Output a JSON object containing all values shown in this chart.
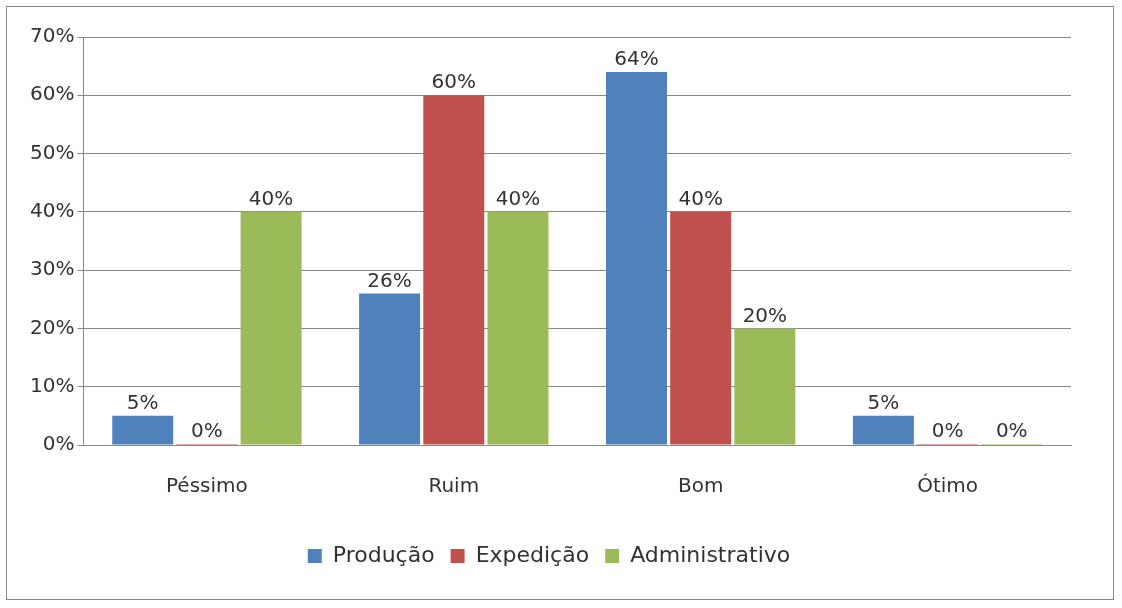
{
  "chart_data": {
    "type": "bar",
    "categories": [
      "Péssimo",
      "Ruim",
      "Bom",
      "Ótimo"
    ],
    "series": [
      {
        "name": "Produção",
        "color": "#4f81bd",
        "values": [
          5,
          26,
          64,
          5
        ],
        "value_labels": [
          "5%",
          "26%",
          "64%",
          "5%"
        ]
      },
      {
        "name": "Expedição",
        "color": "#c0504d",
        "values": [
          0,
          60,
          40,
          0
        ],
        "value_labels": [
          "0%",
          "60%",
          "40%",
          "0%"
        ]
      },
      {
        "name": "Administrativo",
        "color": "#9bbb59",
        "values": [
          40,
          40,
          20,
          0
        ],
        "value_labels": [
          "40%",
          "40%",
          "20%",
          "0%"
        ]
      }
    ],
    "ylim": [
      0,
      70
    ],
    "yticks": [
      {
        "value": 0,
        "label": "0%"
      },
      {
        "value": 10,
        "label": "10%"
      },
      {
        "value": 20,
        "label": "20%"
      },
      {
        "value": 30,
        "label": "30%"
      },
      {
        "value": 40,
        "label": "40%"
      },
      {
        "value": 50,
        "label": "50%"
      },
      {
        "value": 60,
        "label": "60%"
      },
      {
        "value": 70,
        "label": "70%"
      }
    ],
    "grid": "y",
    "legend": "bottom"
  }
}
